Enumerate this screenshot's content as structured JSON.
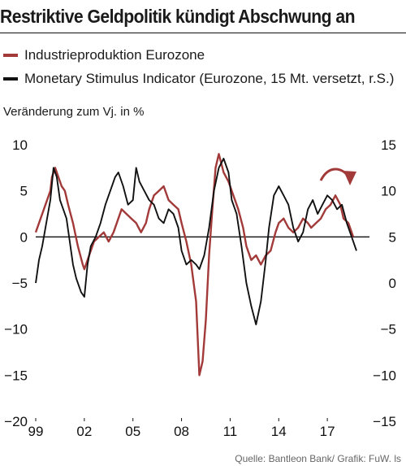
{
  "chart_data": {
    "type": "line",
    "title": "Restriktive Geldpolitik kündigt Abschwung an",
    "ylabel": "Veränderung zum Vj. in %",
    "source": "Quelle: Bantleon Bank/ Grafik: FuW. ls",
    "x_ticks": [
      "99",
      "02",
      "05",
      "08",
      "11",
      "14",
      "17"
    ],
    "x_tick_years": [
      1999,
      2002,
      2005,
      2008,
      2011,
      2014,
      2017
    ],
    "xlim": [
      1999,
      2019.6
    ],
    "y_left": {
      "ticks": [
        "10",
        "5",
        "0",
        "−5",
        "−10",
        "−15",
        "−20"
      ],
      "ylim": [
        -20,
        10
      ]
    },
    "y_right": {
      "ticks": [
        "15",
        "10",
        "5",
        "0",
        "−5",
        "−10",
        "−15"
      ],
      "ylim": [
        -15,
        15
      ]
    },
    "grid": false,
    "annotation": "curved arrow pointing down at latest data",
    "series": [
      {
        "name": "Industrieproduktion Eurozone",
        "color": "#a33a3a",
        "axis": "left",
        "x": [
          1999.0,
          1999.3,
          1999.6,
          1999.9,
          2000.0,
          2000.2,
          2000.4,
          2000.6,
          2000.8,
          2001.0,
          2001.3,
          2001.6,
          2001.9,
          2002.0,
          2002.3,
          2002.6,
          2002.9,
          2003.2,
          2003.5,
          2003.8,
          2004.0,
          2004.3,
          2004.6,
          2004.9,
          2005.2,
          2005.5,
          2005.8,
          2006.0,
          2006.3,
          2006.6,
          2006.9,
          2007.2,
          2007.5,
          2007.8,
          2008.0,
          2008.3,
          2008.6,
          2008.9,
          2009.1,
          2009.3,
          2009.5,
          2009.7,
          2009.9,
          2010.1,
          2010.3,
          2010.6,
          2010.9,
          2011.2,
          2011.5,
          2011.8,
          2012.0,
          2012.3,
          2012.6,
          2012.9,
          2013.2,
          2013.5,
          2013.8,
          2014.0,
          2014.3,
          2014.6,
          2014.9,
          2015.2,
          2015.5,
          2015.8,
          2016.0,
          2016.3,
          2016.6,
          2016.9,
          2017.2,
          2017.5,
          2017.8,
          2018.0,
          2018.3,
          2018.6
        ],
        "values": [
          0.5,
          2.0,
          3.5,
          5.0,
          6.5,
          7.5,
          6.5,
          5.5,
          5.0,
          3.5,
          1.5,
          -1.0,
          -3.0,
          -3.5,
          -2.0,
          -0.5,
          0.0,
          0.5,
          -0.5,
          0.5,
          1.5,
          3.0,
          2.5,
          2.0,
          1.5,
          0.5,
          1.5,
          3.0,
          4.5,
          5.0,
          5.5,
          4.0,
          3.5,
          3.0,
          1.5,
          -0.5,
          -3.0,
          -7.0,
          -15.0,
          -13.5,
          -9.0,
          -2.0,
          3.0,
          7.5,
          9.0,
          7.0,
          6.0,
          4.5,
          3.0,
          1.0,
          -1.0,
          -2.5,
          -2.0,
          -3.0,
          -2.0,
          -1.5,
          0.5,
          1.5,
          2.0,
          1.0,
          0.5,
          1.0,
          2.0,
          1.5,
          1.0,
          1.5,
          2.0,
          3.0,
          3.5,
          4.5,
          3.5,
          2.0,
          1.5,
          0.0
        ]
      },
      {
        "name": "Monetary Stimulus Indicator (Eurozone, 15 Mt. versetzt, r.S.)",
        "color": "#111111",
        "axis": "right",
        "x": [
          1999.0,
          1999.2,
          1999.4,
          1999.6,
          1999.9,
          2000.1,
          2000.3,
          2000.5,
          2000.7,
          2000.9,
          2001.1,
          2001.3,
          2001.5,
          2001.8,
          2002.0,
          2002.2,
          2002.4,
          2002.7,
          2003.0,
          2003.3,
          2003.6,
          2003.9,
          2004.1,
          2004.4,
          2004.7,
          2005.0,
          2005.2,
          2005.4,
          2005.7,
          2006.0,
          2006.3,
          2006.6,
          2006.9,
          2007.2,
          2007.5,
          2007.8,
          2008.0,
          2008.3,
          2008.6,
          2008.9,
          2009.1,
          2009.4,
          2009.7,
          2010.0,
          2010.3,
          2010.6,
          2010.9,
          2011.1,
          2011.4,
          2011.7,
          2012.0,
          2012.3,
          2012.6,
          2012.9,
          2013.2,
          2013.4,
          2013.7,
          2014.0,
          2014.3,
          2014.6,
          2014.9,
          2015.2,
          2015.5,
          2015.8,
          2016.1,
          2016.4,
          2016.7,
          2017.0,
          2017.3,
          2017.6,
          2017.9,
          2018.2,
          2018.5,
          2018.8
        ],
        "values": [
          0.0,
          2.5,
          4.0,
          6.0,
          9.0,
          12.5,
          11.5,
          9.0,
          8.0,
          7.0,
          4.5,
          2.0,
          0.5,
          -1.0,
          -1.5,
          2.0,
          4.0,
          5.0,
          6.5,
          8.5,
          10.0,
          11.5,
          12.0,
          10.5,
          8.5,
          9.0,
          12.5,
          11.0,
          10.0,
          9.0,
          8.5,
          7.0,
          6.5,
          8.0,
          7.5,
          6.0,
          3.5,
          2.0,
          2.5,
          2.0,
          1.5,
          3.0,
          6.0,
          10.0,
          12.5,
          13.5,
          12.0,
          9.0,
          7.5,
          4.0,
          0.0,
          -2.5,
          -4.5,
          -2.0,
          2.5,
          6.0,
          9.5,
          10.5,
          9.5,
          8.5,
          6.0,
          4.5,
          5.5,
          8.0,
          9.0,
          7.5,
          8.5,
          9.5,
          9.0,
          8.0,
          8.5,
          6.5,
          5.0,
          3.5
        ]
      }
    ]
  }
}
